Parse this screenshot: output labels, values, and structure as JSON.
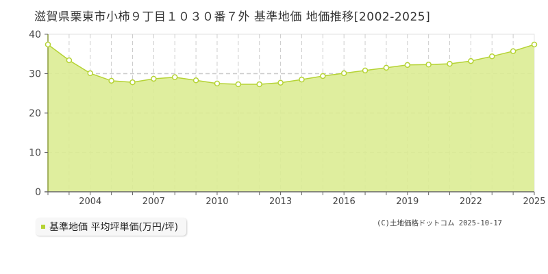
{
  "title": "滋賀県栗東市小柿９丁目１０３０番７外 基準地価 地価推移[2002-2025]",
  "legend": {
    "label": "基準地価 平均坪単価(万円/坪)",
    "color": "#b5d334"
  },
  "copyright": "(C)土地価格ドットコム 2025-10-17",
  "colors": {
    "fill": "#dcec94",
    "line": "#b5d334",
    "grid": "#cccccc",
    "axis": "#666666"
  },
  "chart_data": {
    "type": "area",
    "title": "滋賀県栗東市小柿９丁目１０３０番７外 基準地価 地価推移[2002-2025]",
    "xlabel": "",
    "ylabel": "",
    "ylim": [
      0,
      40
    ],
    "yticks": [
      0,
      10,
      20,
      30,
      40
    ],
    "xtick_labels": [
      "2004",
      "2007",
      "2010",
      "2013",
      "2016",
      "2019",
      "2022",
      "2025"
    ],
    "grid": true,
    "legend_position": "bottom-left",
    "x": [
      2002,
      2003,
      2004,
      2005,
      2006,
      2007,
      2008,
      2009,
      2010,
      2011,
      2012,
      2013,
      2014,
      2015,
      2016,
      2017,
      2018,
      2019,
      2020,
      2021,
      2022,
      2023,
      2024,
      2025
    ],
    "series": [
      {
        "name": "基準地価 平均坪単価(万円/坪)",
        "values": [
          37.4,
          33.4,
          30.1,
          28.2,
          27.8,
          28.7,
          29.1,
          28.3,
          27.5,
          27.3,
          27.3,
          27.7,
          28.5,
          29.4,
          30.1,
          30.8,
          31.5,
          32.2,
          32.3,
          32.5,
          33.2,
          34.4,
          35.7,
          37.4
        ]
      }
    ]
  }
}
